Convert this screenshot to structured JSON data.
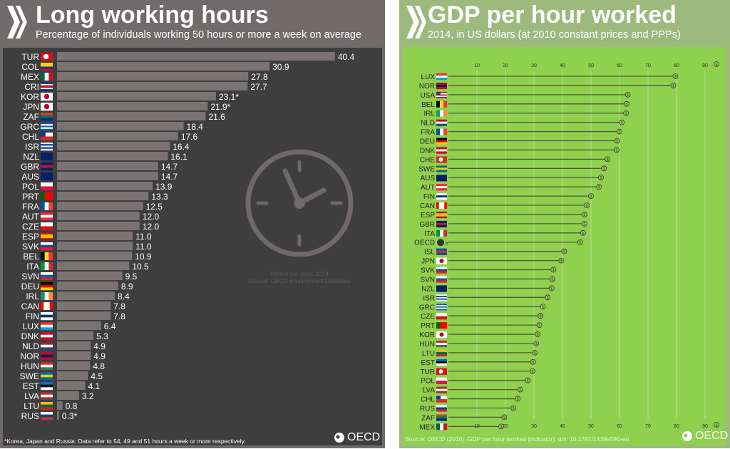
{
  "left": {
    "title": "Long working hours",
    "subtitle": "Percentage of individuals working 50 hours or more a week on average",
    "reference": "Reference year: 2014",
    "source": "Source: OECD Employment Database",
    "footnote": "*Korea, Japan and Russia: Data refer to 54, 49 and 51 hours a week or more respectively.",
    "logo": "OECD",
    "icon": "clock-icon",
    "colors": {
      "header": "#716b6b",
      "plot": "#3e3e3e",
      "bar": "#7a7373",
      "text": "#ffffff"
    }
  },
  "right": {
    "title": "GDP per hour worked",
    "subtitle": "2014, in US dollars (at 2010 constant prices and PPPs)",
    "source": "Source: OECD (2016), GDP per hour worked (indicator). doi: 10.1787/1439e590-en",
    "logo": "OECD",
    "axis_unit_icon": "dollar-coin-icon",
    "colors": {
      "header": "#9cba7e",
      "plot": "#90d04f",
      "line": "#4a5a3a",
      "text": "#222222"
    }
  },
  "chart_data": [
    {
      "type": "bar",
      "orientation": "horizontal",
      "title": "Long working hours",
      "subtitle": "Percentage of individuals working 50 hours or more a week on average",
      "categories": [
        "TUR",
        "COL",
        "MEX",
        "CRI",
        "KOR",
        "JPN",
        "ZAF",
        "GRC",
        "CHL",
        "ISR",
        "NZL",
        "GBR",
        "AUS",
        "POL",
        "PRT",
        "FRA",
        "AUT",
        "CZE",
        "ESP",
        "SVK",
        "BEL",
        "ITA",
        "SVN",
        "DEU",
        "IRL",
        "CAN",
        "FIN",
        "LUX",
        "DNK",
        "NLD",
        "NOR",
        "HUN",
        "SWE",
        "EST",
        "LVA",
        "LTU",
        "RUS"
      ],
      "values": [
        40.4,
        30.9,
        27.8,
        27.7,
        23.1,
        21.9,
        21.6,
        18.4,
        17.6,
        16.4,
        16.1,
        14.7,
        14.7,
        13.9,
        13.3,
        12.5,
        12.0,
        12.0,
        11.0,
        11.0,
        10.9,
        10.5,
        9.5,
        8.9,
        8.4,
        7.8,
        7.8,
        6.4,
        5.3,
        4.9,
        4.9,
        4.8,
        4.5,
        4.1,
        3.2,
        0.8,
        0.3
      ],
      "labels": [
        "40.4",
        "30.9",
        "27.8",
        "27.7",
        "23.1*",
        "21.9*",
        "21.6",
        "18.4",
        "17.6",
        "16.4",
        "16.1",
        "14.7",
        "14.7",
        "13.9",
        "13.3",
        "12.5",
        "12.0",
        "12.0",
        "11.0",
        "11.0",
        "10.9",
        "10.5",
        "9.5",
        "8.9",
        "8.4",
        "7.8",
        "7.8",
        "6.4",
        "5.3",
        "4.9",
        "4.9",
        "4.8",
        "4.5",
        "4.1",
        "3.2",
        "0.8",
        "0.3*"
      ],
      "xlim": [
        0,
        42
      ],
      "grid": false
    },
    {
      "type": "bar",
      "orientation": "horizontal",
      "style": "lollipop",
      "title": "GDP per hour worked",
      "subtitle": "2014, in US dollars (at 2010 constant prices and PPPs)",
      "categories": [
        "LUX",
        "NOR",
        "USA",
        "BEL",
        "IRL",
        "NLD",
        "FRA",
        "DEU",
        "DNK",
        "CHE",
        "SWE",
        "AUS",
        "AUT",
        "FIN",
        "CAN",
        "ESP",
        "GBR",
        "ITA",
        "OECD",
        "ISL",
        "JPN",
        "SVK",
        "SVN",
        "NZL",
        "ISR",
        "GRC",
        "CZE",
        "PRT",
        "KOR",
        "HUN",
        "LTU",
        "EST",
        "TUR",
        "POL",
        "LVA",
        "CHL",
        "RUS",
        "ZAF",
        "MEX"
      ],
      "values": [
        79.6,
        78.9,
        62.9,
        62.5,
        62.3,
        60.8,
        60.0,
        59.2,
        59.0,
        55.8,
        54.6,
        53.5,
        52.8,
        50.0,
        48.5,
        47.7,
        47.7,
        47.2,
        46.2,
        40.6,
        39.6,
        36.8,
        36.4,
        36.2,
        34.8,
        33.1,
        32.3,
        31.9,
        31.3,
        30.8,
        30.3,
        29.7,
        29.5,
        27.8,
        25.2,
        24.3,
        22.8,
        19.6,
        18.5
      ],
      "xticks": [
        10,
        20,
        30,
        40,
        50,
        60,
        70,
        80,
        90
      ],
      "xlim": [
        0,
        92
      ],
      "grid": true
    }
  ]
}
